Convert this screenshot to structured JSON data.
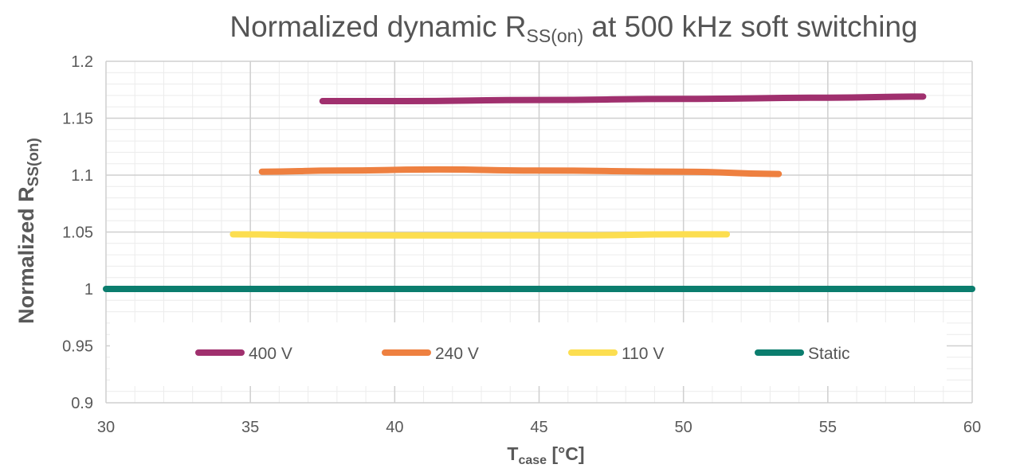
{
  "chart_data": {
    "type": "line",
    "title": {
      "main": "Normalized dynamic R",
      "sub": "SS(on)",
      "rest": " at 500 kHz soft switching"
    },
    "xlabel": {
      "main": "T",
      "sub": "case",
      "rest": " [°C]"
    },
    "ylabel": {
      "main": "Normalized R",
      "sub": "SS(on)"
    },
    "xlim": [
      30,
      60
    ],
    "ylim": [
      0.9,
      1.2
    ],
    "x_ticks": [
      "30",
      "35",
      "40",
      "45",
      "50",
      "55",
      "60"
    ],
    "y_ticks": [
      "0.9",
      "0.95",
      "1",
      "1.05",
      "1.1",
      "1.15",
      "1.2"
    ],
    "grid": true,
    "legend_position": "bottom-inside",
    "series": [
      {
        "name": "400 V",
        "color": "#A0306E",
        "x": [
          37.5,
          40,
          45,
          50,
          55,
          58.3
        ],
        "y": [
          1.165,
          1.165,
          1.166,
          1.167,
          1.168,
          1.169
        ]
      },
      {
        "name": "240 V",
        "color": "#EE8040",
        "x": [
          35.4,
          38,
          41.5,
          45,
          50,
          53.3
        ],
        "y": [
          1.103,
          1.104,
          1.105,
          1.104,
          1.103,
          1.101
        ]
      },
      {
        "name": "110 V",
        "color": "#FCDE50",
        "x": [
          34.4,
          38,
          42,
          46,
          50,
          51.5
        ],
        "y": [
          1.048,
          1.047,
          1.047,
          1.047,
          1.048,
          1.048
        ]
      },
      {
        "name": "Static",
        "color": "#0B7D6E",
        "x": [
          30,
          60
        ],
        "y": [
          1.0,
          1.0
        ]
      }
    ]
  }
}
